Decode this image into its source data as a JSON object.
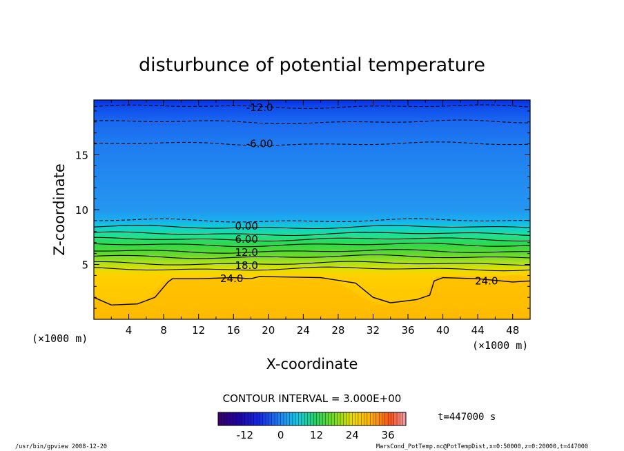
{
  "chart_data": {
    "type": "contour",
    "title": "disturbunce of potential temperature",
    "xlabel": "X-coordinate",
    "ylabel": "Z-coordinate",
    "x_unit_left": "(×1000 m)",
    "x_unit_right": "(×1000 m)",
    "xlim": [
      0,
      50
    ],
    "ylim": [
      0,
      20
    ],
    "xticks": [
      4,
      8,
      12,
      16,
      20,
      24,
      28,
      32,
      36,
      40,
      44,
      48
    ],
    "yticks": [
      5,
      10,
      15
    ],
    "contour_labels": [
      {
        "text": "-12.0",
        "x": 19.0,
        "z": 19.3
      },
      {
        "text": "-6.00",
        "x": 19.0,
        "z": 16.0
      },
      {
        "text": "0.00",
        "x": 17.5,
        "z": 8.5
      },
      {
        "text": "6.00",
        "x": 17.5,
        "z": 7.3
      },
      {
        "text": "12.0",
        "x": 17.5,
        "z": 6.1
      },
      {
        "text": "18.0",
        "x": 17.5,
        "z": 4.9
      },
      {
        "text": "24.0",
        "x": 15.8,
        "z": 3.7
      },
      {
        "text": "24.0",
        "x": 45.0,
        "z": 3.5
      }
    ],
    "contour_interval_text": "CONTOUR INTERVAL = 3.000E+00",
    "time_text": "t=447000 s",
    "colorbar": {
      "range": [
        -21,
        42
      ],
      "ticks": [
        "-12",
        "0",
        "12",
        "24",
        "36"
      ],
      "tick_values": [
        -12,
        0,
        12,
        24,
        36
      ]
    }
  },
  "footer": {
    "left": "/usr/bin/gpview   2008-12-20",
    "right": "MarsCond_PotTemp.nc@PotTempDist,x=0:50000,z=0:20000,t=447000"
  },
  "colors": {
    "top": "#0a3ee8",
    "upper_blue": "#1a6ef0",
    "mid_blue": "#238cf0",
    "cyan": "#12c8d8",
    "green": "#30d060",
    "yellow_green": "#b0e030",
    "yellow": "#f0d000",
    "orange": "#ffc400"
  }
}
